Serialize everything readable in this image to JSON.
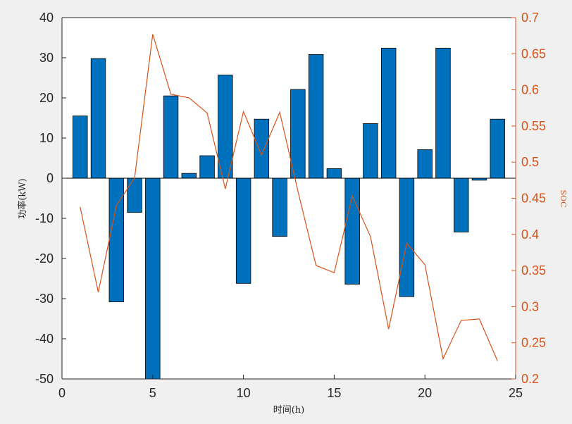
{
  "chart_data": {
    "type": "bar",
    "xlabel": "时间(h)",
    "ylabel_left": "功率(kW)",
    "ylabel_right": "SOC",
    "xlim": [
      0,
      25
    ],
    "ylim_left": [
      -50,
      40
    ],
    "ylim_right": [
      0.2,
      0.7
    ],
    "xticks": [
      "0",
      "5",
      "10",
      "15",
      "20",
      "25"
    ],
    "yticks_left": [
      "-50",
      "-40",
      "-30",
      "-20",
      "-10",
      "0",
      "10",
      "20",
      "30",
      "40"
    ],
    "yticks_right": [
      "0.2",
      "0.25",
      "0.3",
      "0.35",
      "0.4",
      "0.45",
      "0.5",
      "0.55",
      "0.6",
      "0.65",
      "0.7"
    ],
    "grid": false,
    "colors": {
      "bar_fill": "#0072bd",
      "line": "#d95319",
      "right_axis": "#d95319",
      "left_axis": "#262626"
    },
    "series": [
      {
        "type": "bar",
        "axis": "left",
        "x": [
          1,
          2,
          3,
          4,
          5,
          6,
          7,
          8,
          9,
          10,
          11,
          12,
          13,
          14,
          15,
          16,
          17,
          18,
          19,
          20,
          21,
          22,
          23,
          24
        ],
        "values": [
          15.5,
          29.8,
          -30.8,
          -8.5,
          -50,
          20.5,
          1.2,
          5.6,
          25.7,
          -26.2,
          14.7,
          -14.5,
          22.1,
          30.8,
          2.4,
          -26.4,
          13.6,
          32.4,
          -29.5,
          7.1,
          32.4,
          -13.4,
          -0.5,
          14.7
        ]
      },
      {
        "type": "line",
        "axis": "right",
        "x": [
          1,
          2,
          3,
          4,
          5,
          6,
          7,
          8,
          9,
          10,
          11,
          12,
          13,
          14,
          15,
          16,
          17,
          18,
          19,
          20,
          21,
          22,
          23,
          24
        ],
        "values": [
          0.438,
          0.32,
          0.44,
          0.478,
          0.677,
          0.594,
          0.589,
          0.568,
          0.463,
          0.57,
          0.51,
          0.569,
          0.46,
          0.357,
          0.347,
          0.453,
          0.397,
          0.269,
          0.388,
          0.358,
          0.228,
          0.281,
          0.283,
          0.225
        ]
      }
    ]
  }
}
